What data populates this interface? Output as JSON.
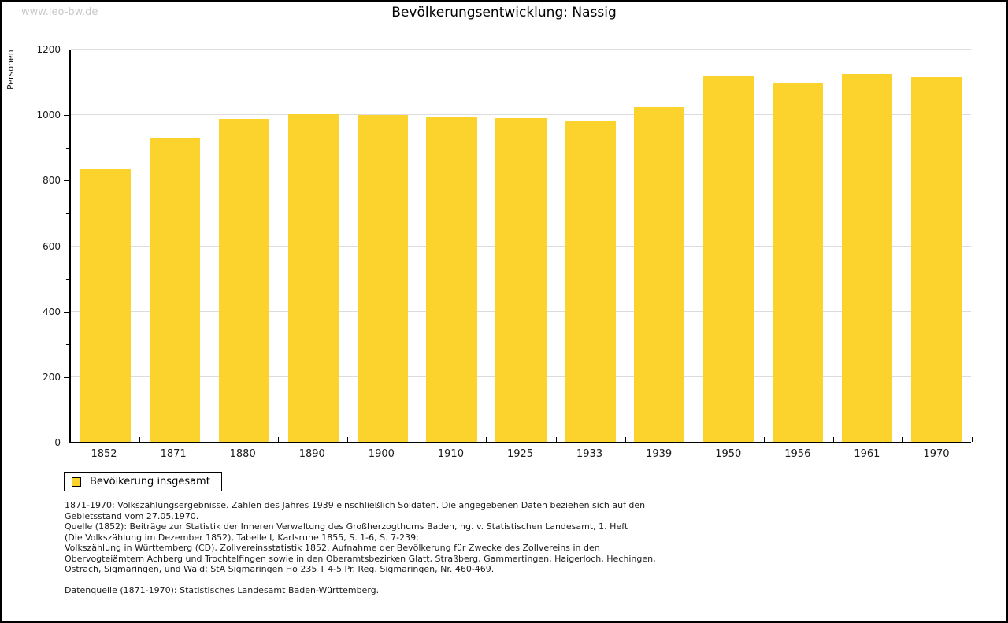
{
  "page": {
    "watermark": "www.leo-bw.de",
    "title": "Bevölkerungsentwicklung: Nassig"
  },
  "chart_data": {
    "type": "bar",
    "title": "Bevölkerungsentwicklung: Nassig",
    "xlabel": "",
    "ylabel": "Personen",
    "categories": [
      "1852",
      "1871",
      "1880",
      "1890",
      "1900",
      "1910",
      "1925",
      "1933",
      "1939",
      "1950",
      "1956",
      "1961",
      "1970"
    ],
    "values": [
      836,
      933,
      990,
      1005,
      1002,
      996,
      993,
      985,
      1027,
      1120,
      1101,
      1128,
      1118
    ],
    "ylim": [
      0,
      1200
    ],
    "ytick_major_step": 200,
    "ytick_minor_step": 100,
    "yticks_labeled": [
      0,
      200,
      400,
      600,
      800,
      1000,
      1200
    ],
    "grid": true,
    "legend_position": "bottom-left",
    "bar_color": "#FCD32D",
    "grid_color": "#dcdcdc",
    "axis_color": "#000000"
  },
  "legend": {
    "label": "Bevölkerung insgesamt"
  },
  "footer": {
    "lines": [
      "1871-1970: Volkszählungsergebnisse. Zahlen des Jahres 1939 einschließlich Soldaten. Die angegebenen Daten beziehen sich auf den",
      "Gebietsstand vom 27.05.1970.",
      "Quelle (1852): Beiträge zur Statistik der Inneren Verwaltung des Großherzogthums Baden, hg. v. Statistischen Landesamt, 1. Heft",
      "(Die Volkszählung im Dezember 1852), Tabelle I, Karlsruhe 1855, S. 1-6, S. 7-239;",
      "Volkszählung in Württemberg (CD), Zollvereinsstatistik 1852. Aufnahme der Bevölkerung für Zwecke des Zollvereins in den",
      "Obervogteiämtern Achberg und Trochtelfingen sowie in den Oberamtsbezirken Glatt, Straßberg, Gammertingen, Haigerloch, Hechingen,",
      "Ostrach, Sigmaringen, und Wald; StA Sigmaringen Ho 235 T 4-5 Pr. Reg. Sigmaringen, Nr. 460-469.",
      "",
      "Datenquelle (1871-1970): Statistisches Landesamt Baden-Württemberg."
    ]
  }
}
